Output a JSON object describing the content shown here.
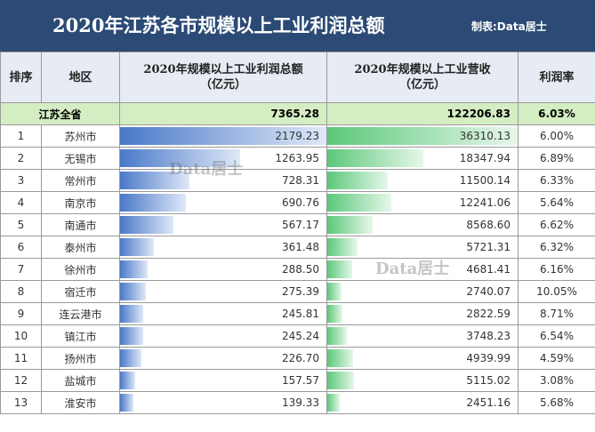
{
  "header": {
    "title": "2020年江苏各市规模以上工业利润总额",
    "credit": "制表:Data居士"
  },
  "columns": {
    "rank": "排序",
    "region": "地区",
    "profit": "2020年规模以上工业利润总额（亿元）",
    "revenue": "2020年规模以上工业营收（亿元）",
    "margin": "利润率"
  },
  "total": {
    "region": "江苏全省",
    "profit": "7365.28",
    "revenue": "122206.83",
    "margin": "6.03%"
  },
  "rows": [
    {
      "rank": "1",
      "region": "苏州市",
      "profit": "2179.23",
      "revenue": "36310.13",
      "margin": "6.00%",
      "profit_value": 2179.23,
      "revenue_value": 36310.13
    },
    {
      "rank": "2",
      "region": "无锡市",
      "profit": "1263.95",
      "revenue": "18347.94",
      "margin": "6.89%",
      "profit_value": 1263.95,
      "revenue_value": 18347.94
    },
    {
      "rank": "3",
      "region": "常州市",
      "profit": "728.31",
      "revenue": "11500.14",
      "margin": "6.33%",
      "profit_value": 728.31,
      "revenue_value": 11500.14
    },
    {
      "rank": "4",
      "region": "南京市",
      "profit": "690.76",
      "revenue": "12241.06",
      "margin": "5.64%",
      "profit_value": 690.76,
      "revenue_value": 12241.06
    },
    {
      "rank": "5",
      "region": "南通市",
      "profit": "567.17",
      "revenue": "8568.60",
      "margin": "6.62%",
      "profit_value": 567.17,
      "revenue_value": 8568.6
    },
    {
      "rank": "6",
      "region": "泰州市",
      "profit": "361.48",
      "revenue": "5721.31",
      "margin": "6.32%",
      "profit_value": 361.48,
      "revenue_value": 5721.31
    },
    {
      "rank": "7",
      "region": "徐州市",
      "profit": "288.50",
      "revenue": "4681.41",
      "margin": "6.16%",
      "profit_value": 288.5,
      "revenue_value": 4681.41
    },
    {
      "rank": "8",
      "region": "宿迁市",
      "profit": "275.39",
      "revenue": "2740.07",
      "margin": "10.05%",
      "profit_value": 275.39,
      "revenue_value": 2740.07
    },
    {
      "rank": "9",
      "region": "连云港市",
      "profit": "245.81",
      "revenue": "2822.59",
      "margin": "8.71%",
      "profit_value": 245.81,
      "revenue_value": 2822.59
    },
    {
      "rank": "10",
      "region": "镇江市",
      "profit": "245.24",
      "revenue": "3748.23",
      "margin": "6.54%",
      "profit_value": 245.24,
      "revenue_value": 3748.23
    },
    {
      "rank": "11",
      "region": "扬州市",
      "profit": "226.70",
      "revenue": "4939.99",
      "margin": "4.59%",
      "profit_value": 226.7,
      "revenue_value": 4939.99
    },
    {
      "rank": "12",
      "region": "盐城市",
      "profit": "157.57",
      "revenue": "5115.02",
      "margin": "3.08%",
      "profit_value": 157.57,
      "revenue_value": 5115.02
    },
    {
      "rank": "13",
      "region": "淮安市",
      "profit": "139.33",
      "revenue": "2451.16",
      "margin": "5.68%",
      "profit_value": 139.33,
      "revenue_value": 2451.16
    }
  ],
  "watermark": "Data居士",
  "colors": {
    "header_bg": "#2b4a75",
    "total_bg": "#d4edc3",
    "blue_bar": "#4a79c8",
    "green_bar": "#5cc87a"
  }
}
